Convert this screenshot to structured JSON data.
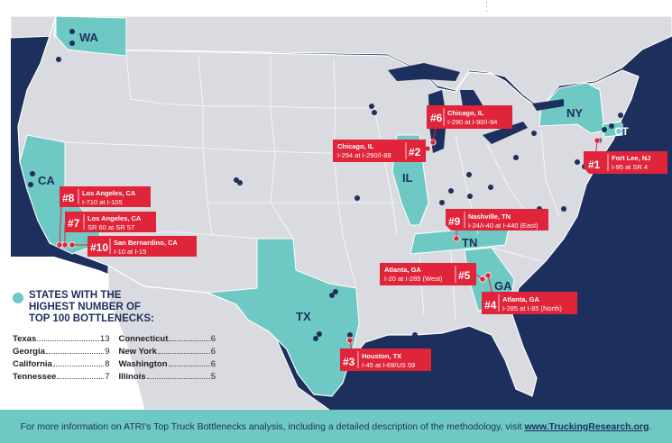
{
  "colors": {
    "ocean": "#1d2f5c",
    "land": "#d9dbe0",
    "highlight": "#6ec9c4",
    "marker": "#e0243a",
    "dot": "#1d2f5c"
  },
  "states": [
    "WA",
    "CA",
    "IL",
    "NY",
    "CT",
    "TN",
    "GA",
    "TX"
  ],
  "bottlenecks": [
    {
      "rank": "#1",
      "city": "Fort Lee, NJ",
      "road": "I-95 at SR 4"
    },
    {
      "rank": "#2",
      "city": "Chicago, IL",
      "road": "I-294 at I-290/I-88"
    },
    {
      "rank": "#3",
      "city": "Houston, TX",
      "road": "I-45 at I-69/US 59"
    },
    {
      "rank": "#4",
      "city": "Atlanta, GA",
      "road": "I-285 at I-85 (North)"
    },
    {
      "rank": "#5",
      "city": "Atlanta, GA",
      "road": "I-20 at I-285 (West)"
    },
    {
      "rank": "#6",
      "city": "Chicago, IL",
      "road": "I-290 at I-90/I-94"
    },
    {
      "rank": "#7",
      "city": "Los Angeles, CA",
      "road": "SR 60 at SR 57"
    },
    {
      "rank": "#8",
      "city": "Los Angeles, CA",
      "road": "I-710 at I-105"
    },
    {
      "rank": "#9",
      "city": "Nashville, TN",
      "road": "I-24/I-40 at I-440 (East)"
    },
    {
      "rank": "#10",
      "city": "San Bernardino, CA",
      "road": "I-10 at I-15"
    }
  ],
  "legend": {
    "title": "STATES WITH THE HIGHEST NUMBER OF TOP 100 BOTTLENECKS:",
    "rows": [
      {
        "state": "Texas",
        "count": "13"
      },
      {
        "state": "Connecticut",
        "count": "6"
      },
      {
        "state": "Georgia",
        "count": "9"
      },
      {
        "state": "New York",
        "count": "6"
      },
      {
        "state": "California",
        "count": "8"
      },
      {
        "state": "Washington",
        "count": "6"
      },
      {
        "state": "Tennessee",
        "count": "7"
      },
      {
        "state": "Illinois",
        "count": "5"
      }
    ]
  },
  "footer": {
    "text": "For more information on ATRI's Top Truck Bottlenecks analysis, including a detailed description of the methodology, visit",
    "link": "www.TruckingResearch.org",
    "end": "."
  }
}
